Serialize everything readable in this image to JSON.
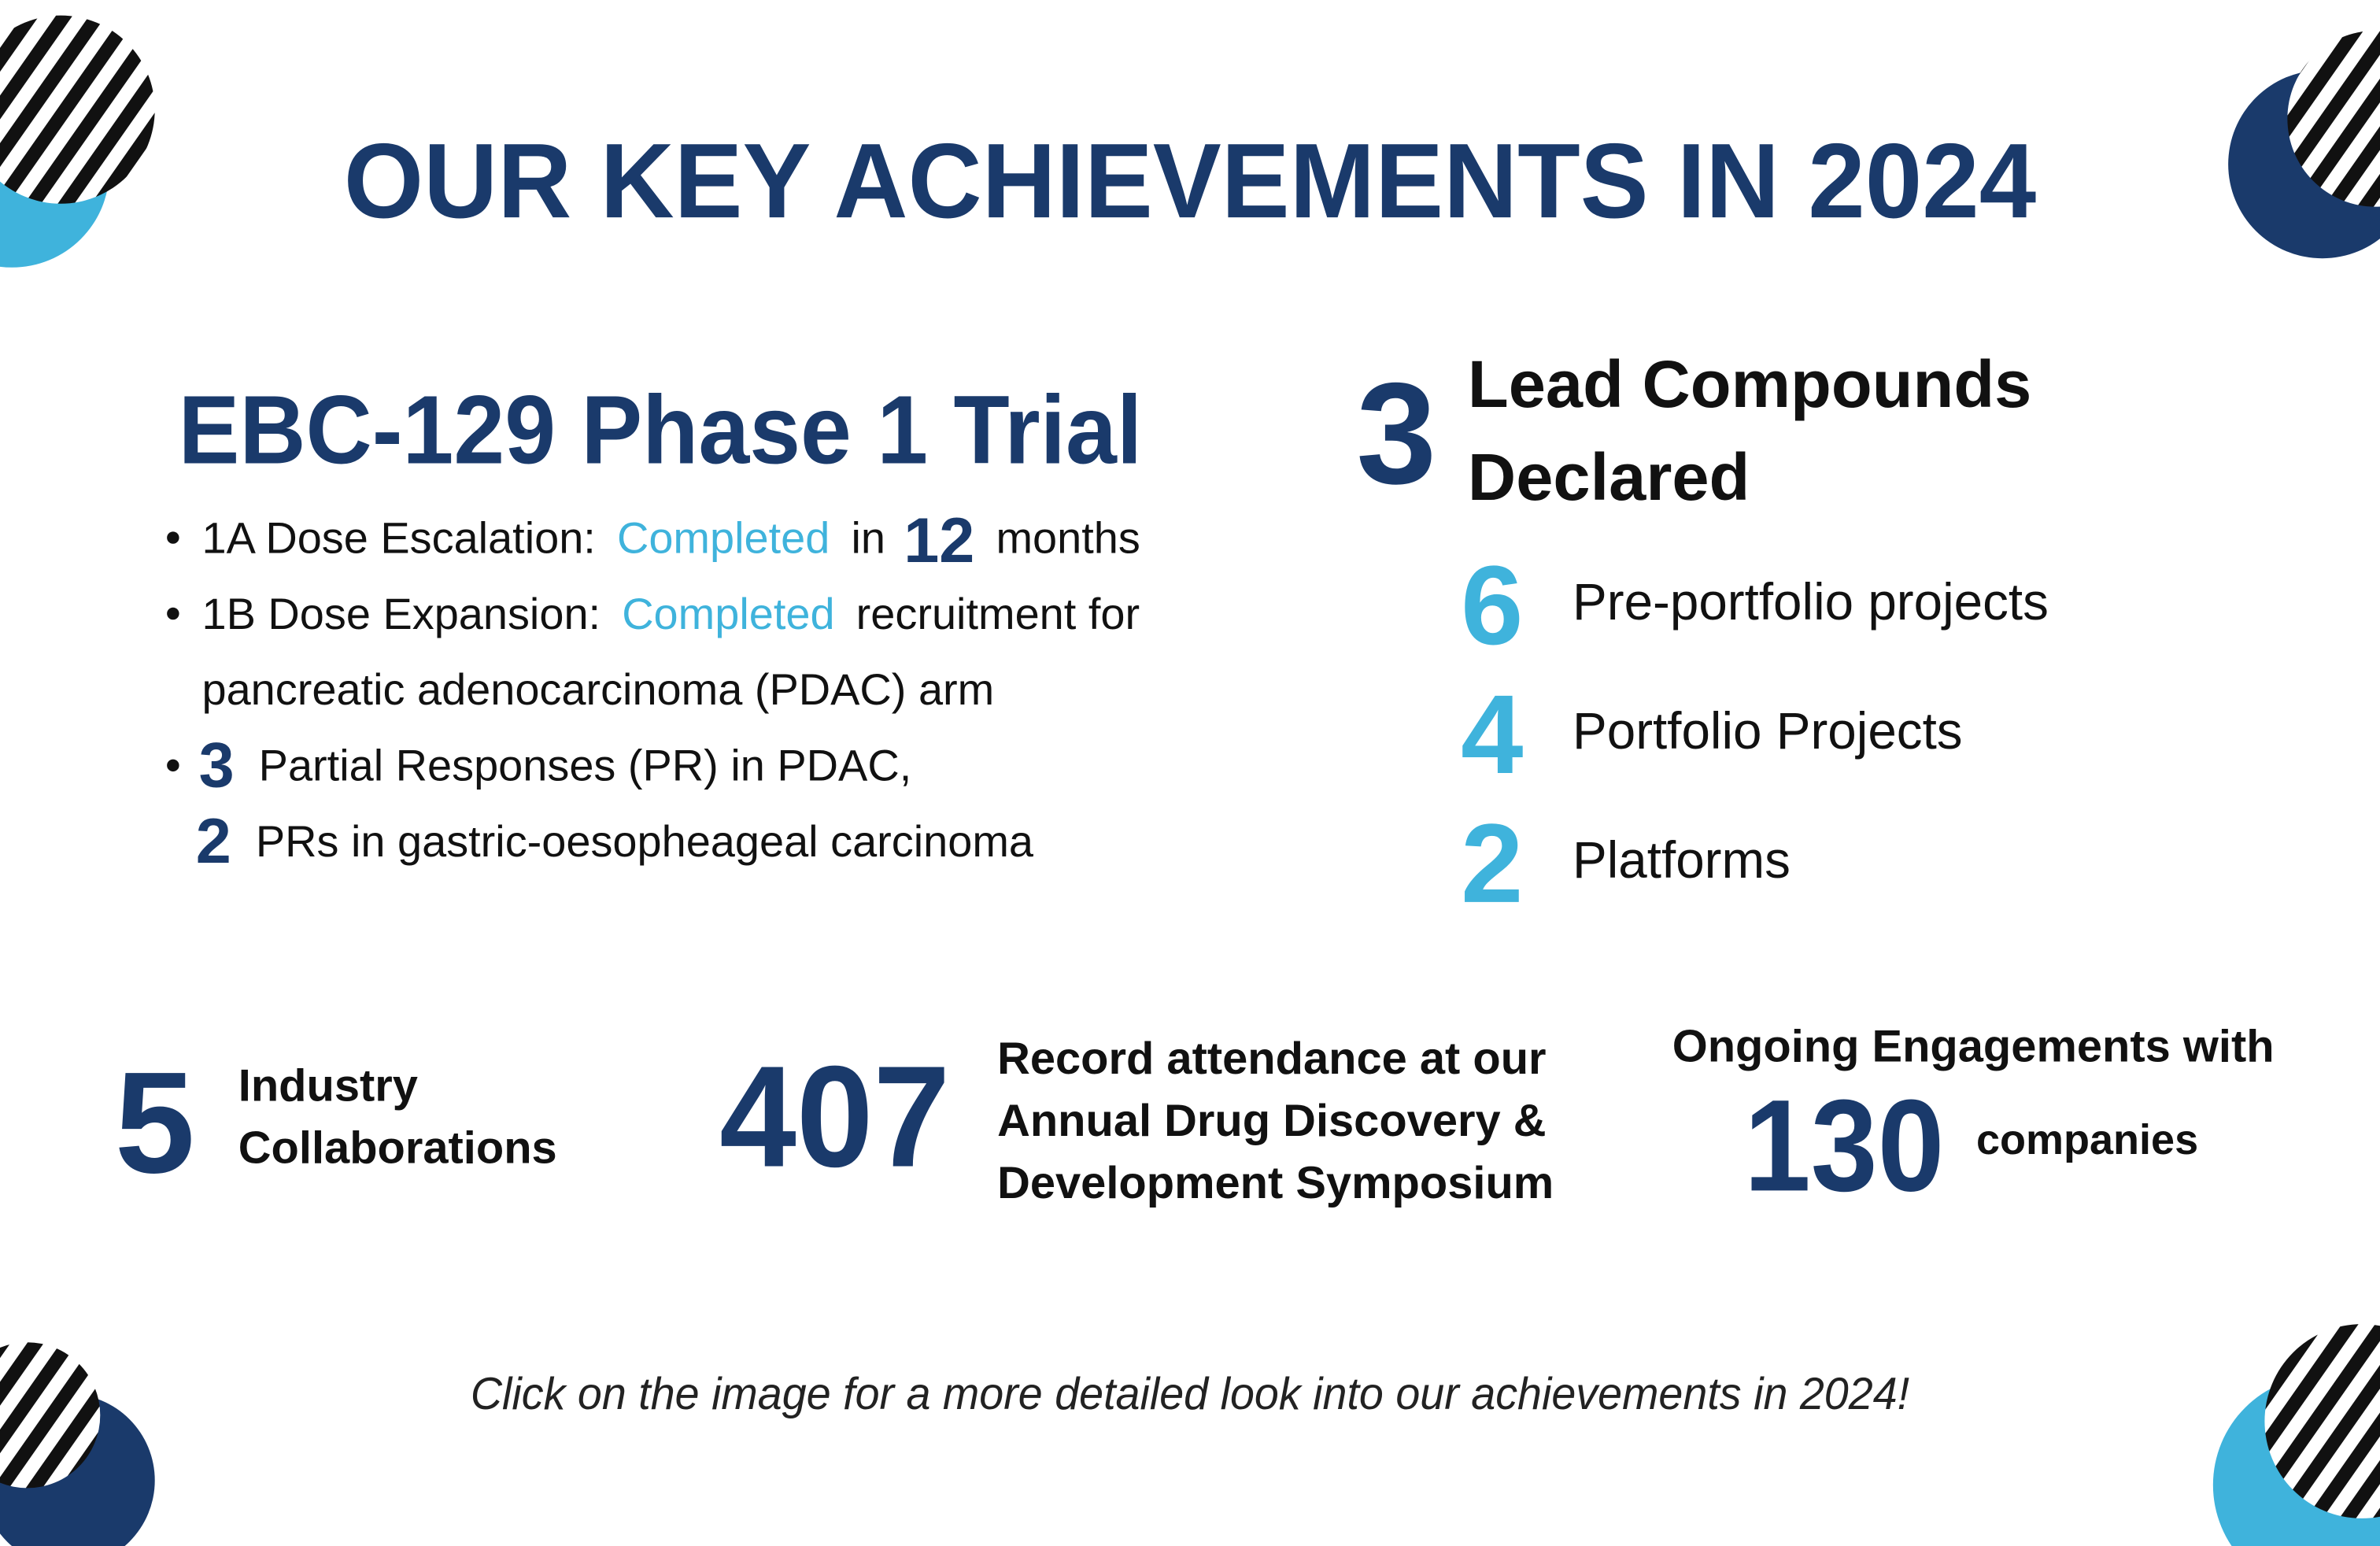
{
  "title": "OUR KEY ACHIEVEMENTS IN 2024",
  "trial": {
    "heading": "EBC-129 Phase 1 Trial",
    "bullets": [
      [
        "1A Dose Escalation:",
        "Completed",
        "in",
        "12",
        "months"
      ],
      [
        "1B Dose Expansion:",
        "Completed",
        "recruitment for",
        "pancreatic adenocarcinoma (PDAC) arm"
      ],
      [
        "3",
        "Partial Responses (PR) in PDAC,",
        "2",
        "PRs in gastric-oesopheageal carcinoma"
      ]
    ]
  },
  "compounds": {
    "number": "3",
    "label": [
      "Lead Compounds",
      "Declared"
    ]
  },
  "projects": [
    {
      "number": "6",
      "label": "Pre-portfolio projects"
    },
    {
      "number": "4",
      "label": "Portfolio Projects"
    },
    {
      "number": "2",
      "label": "Platforms"
    }
  ],
  "stats": [
    {
      "number": "5",
      "label": [
        "Industry",
        "Collaborations"
      ]
    },
    {
      "number": "407",
      "label": [
        "Record attendance at our",
        "Annual Drug Discovery &",
        "Development Symposium"
      ]
    },
    {
      "number": "130",
      "label": [
        "Ongoing Engagements with",
        "companies"
      ]
    }
  ],
  "footer": "Click on the image for a more detailed look into our achievements in 2024!"
}
